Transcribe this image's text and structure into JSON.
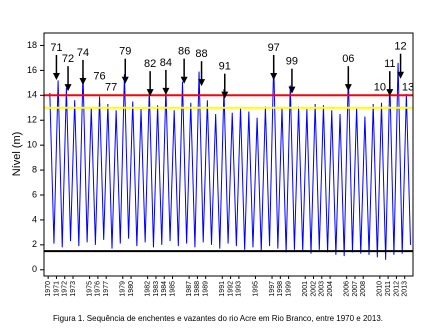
{
  "chart_data": {
    "type": "line",
    "caption": "Figura 1. Sequência de enchentes e vazantes do rio Acre em Rio Branco, entre 1970 e 2013.",
    "ylabel": "Nível (m)",
    "color": "#0000ff",
    "x": [
      1970.2,
      1970.7,
      1971.2,
      1971.7,
      1972.2,
      1972.7,
      1973.2,
      1973.7,
      1974.2,
      1974.7,
      1975.2,
      1975.7,
      1976.2,
      1976.7,
      1977.2,
      1977.7,
      1978.2,
      1978.7,
      1979.2,
      1979.7,
      1980.2,
      1980.7,
      1981.2,
      1981.7,
      1982.2,
      1982.7,
      1983.2,
      1983.7,
      1984.2,
      1984.7,
      1985.2,
      1985.7,
      1986.2,
      1986.7,
      1987.2,
      1987.7,
      1988.2,
      1988.7,
      1989.2,
      1989.7,
      1990.2,
      1990.7,
      1991.2,
      1991.7,
      1992.2,
      1992.7,
      1993.2,
      1993.7,
      1994.2,
      1994.7,
      1995.2,
      1995.7,
      1996.2,
      1996.7,
      1997.2,
      1997.7,
      1998.2,
      1998.7,
      1999.2,
      1999.7,
      2000.2,
      2000.7,
      2001.2,
      2001.7,
      2002.2,
      2002.7,
      2003.2,
      2003.7,
      2004.2,
      2004.7,
      2005.2,
      2005.7,
      2006.2,
      2006.7,
      2007.2,
      2007.7,
      2008.2,
      2008.7,
      2009.2,
      2009.7,
      2010.2,
      2010.7,
      2011.2,
      2011.7,
      2012.2,
      2012.7,
      2013.2,
      2013.7
    ],
    "values": [
      14.2,
      2.1,
      15.2,
      1.8,
      14.6,
      2.3,
      13.6,
      1.9,
      15.8,
      2.2,
      13.0,
      2.0,
      13.9,
      2.4,
      13.3,
      1.7,
      12.8,
      2.1,
      15.7,
      2.5,
      13.5,
      1.9,
      12.9,
      2.2,
      14.5,
      1.8,
      13.2,
      2.0,
      14.6,
      2.3,
      12.8,
      1.9,
      15.1,
      2.1,
      13.4,
      1.8,
      15.9,
      2.2,
      13.6,
      2.0,
      12.5,
      1.7,
      14.5,
      2.1,
      12.6,
      1.9,
      13.0,
      1.6,
      12.7,
      1.8,
      12.2,
      1.5,
      13.1,
      1.9,
      16.6,
      1.7,
      13.0,
      1.4,
      14.8,
      1.6,
      13.1,
      1.5,
      12.9,
      1.3,
      13.3,
      1.6,
      13.2,
      1.4,
      12.8,
      1.2,
      12.5,
      1.1,
      15.6,
      1.4,
      13.0,
      1.3,
      12.3,
      1.2,
      13.3,
      1.0,
      13.4,
      0.8,
      15.3,
      1.2,
      16.6,
      1.3,
      14.1,
      2.0
    ],
    "xlim": [
      1969.5,
      2014
    ],
    "ylim": [
      -0.5,
      19
    ],
    "yticks": [
      0,
      2,
      4,
      6,
      8,
      10,
      12,
      14,
      16,
      18
    ],
    "xticks": [
      1970,
      1971,
      1972,
      1973,
      1975,
      1976,
      1977,
      1979,
      1980,
      1982,
      1983,
      1984,
      1985,
      1987,
      1988,
      1989,
      1991,
      1992,
      1993,
      1995,
      1997,
      1998,
      1999,
      2001,
      2002,
      2003,
      2004,
      2006,
      2007,
      2008,
      2010,
      2011,
      2012,
      2013
    ],
    "reference_lines": [
      {
        "y": 14,
        "color": "#ff0000"
      },
      {
        "y": 13,
        "color": "#ffff00"
      },
      {
        "y": 1.5,
        "color": "#000000"
      }
    ],
    "annotations": [
      {
        "text": "71",
        "x": 1971.0,
        "y": 17.8,
        "arrow": true
      },
      {
        "text": "72",
        "x": 1972.4,
        "y": 16.9,
        "arrow": true
      },
      {
        "text": "74",
        "x": 1974.2,
        "y": 17.4,
        "arrow": true
      },
      {
        "text": "76",
        "x": 1976.2,
        "y": 15.5,
        "arrow": false
      },
      {
        "text": "77",
        "x": 1977.6,
        "y": 14.6,
        "arrow": false
      },
      {
        "text": "79",
        "x": 1979.3,
        "y": 17.5,
        "arrow": true
      },
      {
        "text": "82",
        "x": 1982.3,
        "y": 16.5,
        "arrow": true
      },
      {
        "text": "84",
        "x": 1984.2,
        "y": 16.6,
        "arrow": true
      },
      {
        "text": "86",
        "x": 1986.4,
        "y": 17.5,
        "arrow": true
      },
      {
        "text": "88",
        "x": 1988.5,
        "y": 17.3,
        "arrow": true
      },
      {
        "text": "91",
        "x": 1991.3,
        "y": 16.3,
        "arrow": true
      },
      {
        "text": "97",
        "x": 1997.2,
        "y": 17.8,
        "arrow": true
      },
      {
        "text": "99",
        "x": 1999.4,
        "y": 16.7,
        "arrow": true
      },
      {
        "text": "06",
        "x": 2006.2,
        "y": 16.9,
        "arrow": true
      },
      {
        "text": "10",
        "x": 2010.0,
        "y": 14.6,
        "arrow": false
      },
      {
        "text": "11",
        "x": 2011.2,
        "y": 16.5,
        "arrow": true
      },
      {
        "text": "12",
        "x": 2012.5,
        "y": 17.9,
        "arrow": true
      },
      {
        "text": "13",
        "x": 2013.4,
        "y": 14.6,
        "arrow": false
      }
    ]
  }
}
